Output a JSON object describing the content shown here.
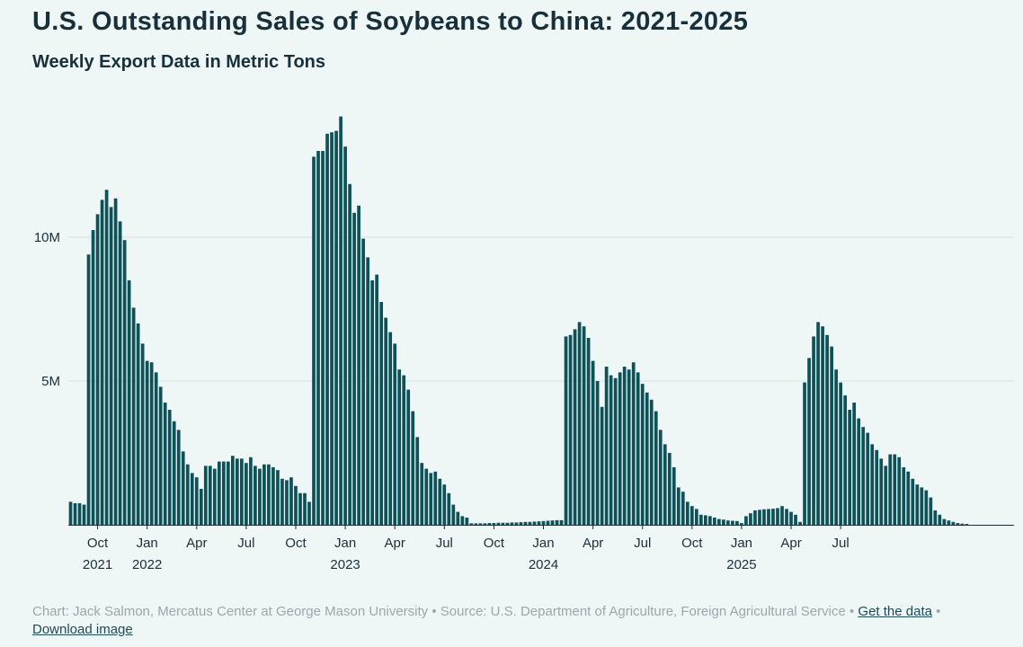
{
  "header": {
    "title": "U.S. Outstanding Sales of Soybeans to China: 2021-2025",
    "subtitle": "Weekly Export Data in Metric Tons"
  },
  "footer": {
    "credit": "Chart: Jack Salmon, Mercatus Center at George Mason University",
    "separator": " • ",
    "source": "Source: U.S. Department of Agriculture, Foreign Agricultural Service",
    "get_data_label": "Get the data",
    "download_label": "Download image"
  },
  "colors": {
    "bar": "#0d5258",
    "grid": "#d6e3e4",
    "axis": "#1b2f3a",
    "background": "#eef6f6"
  },
  "chart_data": {
    "type": "bar",
    "title": "U.S. Outstanding Sales of Soybeans to China: 2021-2025",
    "subtitle": "Weekly Export Data in Metric Tons",
    "xlabel": "",
    "ylabel": "",
    "ylim": [
      0,
      14500000
    ],
    "grid": true,
    "y_ticks": [
      {
        "value": 5000000,
        "label": "5M"
      },
      {
        "value": 10000000,
        "label": "10M"
      }
    ],
    "x_ticks": [
      {
        "week": 6,
        "month": "Oct",
        "year": "2021"
      },
      {
        "week": 17,
        "month": "Jan",
        "year": "2022"
      },
      {
        "week": 28,
        "month": "Apr",
        "year": ""
      },
      {
        "week": 39,
        "month": "Jul",
        "year": ""
      },
      {
        "week": 50,
        "month": "Oct",
        "year": ""
      },
      {
        "week": 61,
        "month": "Jan",
        "year": "2023"
      },
      {
        "week": 72,
        "month": "Apr",
        "year": ""
      },
      {
        "week": 83,
        "month": "Jul",
        "year": ""
      },
      {
        "week": 94,
        "month": "Oct",
        "year": ""
      },
      {
        "week": 105,
        "month": "Jan",
        "year": "2024"
      },
      {
        "week": 116,
        "month": "Apr",
        "year": ""
      },
      {
        "week": 127,
        "month": "Jul",
        "year": ""
      },
      {
        "week": 138,
        "month": "Oct",
        "year": ""
      },
      {
        "week": 149,
        "month": "Jan",
        "year": "2025"
      },
      {
        "week": 160,
        "month": "Apr",
        "year": ""
      },
      {
        "week": 171,
        "month": "Jul",
        "year": ""
      }
    ],
    "series": [
      {
        "name": "Outstanding sales (metric tons)",
        "values": [
          800000,
          750000,
          750000,
          700000,
          9400000,
          10250000,
          10800000,
          11300000,
          11650000,
          11050000,
          11350000,
          10550000,
          9900000,
          8500000,
          7550000,
          7000000,
          6300000,
          5700000,
          5650000,
          5300000,
          4800000,
          4250000,
          4000000,
          3600000,
          3300000,
          2550000,
          2100000,
          1800000,
          1650000,
          1250000,
          2050000,
          2050000,
          1950000,
          2200000,
          2200000,
          2200000,
          2400000,
          2300000,
          2300000,
          2150000,
          2350000,
          2050000,
          1950000,
          2100000,
          2100000,
          2000000,
          1900000,
          1600000,
          1550000,
          1650000,
          1350000,
          1100000,
          1100000,
          800000,
          12800000,
          13000000,
          13000000,
          13600000,
          13650000,
          13700000,
          14200000,
          13150000,
          11850000,
          10850000,
          11100000,
          9950000,
          9300000,
          8500000,
          8700000,
          7750000,
          7200000,
          6700000,
          6300000,
          5400000,
          5200000,
          4700000,
          3950000,
          3050000,
          2150000,
          1950000,
          1800000,
          1850000,
          1600000,
          1400000,
          1100000,
          700000,
          450000,
          300000,
          250000,
          50000,
          50000,
          50000,
          50000,
          60000,
          60000,
          70000,
          70000,
          70000,
          80000,
          80000,
          90000,
          100000,
          100000,
          110000,
          120000,
          130000,
          140000,
          150000,
          160000,
          160000,
          6550000,
          6600000,
          6800000,
          7050000,
          6900000,
          6500000,
          5700000,
          5000000,
          4100000,
          5500000,
          5200000,
          5100000,
          5300000,
          5500000,
          5400000,
          5650000,
          5300000,
          4900000,
          4600000,
          4350000,
          3950000,
          3300000,
          2800000,
          2500000,
          2000000,
          1300000,
          1150000,
          800000,
          650000,
          550000,
          350000,
          330000,
          300000,
          250000,
          200000,
          180000,
          150000,
          140000,
          130000,
          60000,
          300000,
          400000,
          500000,
          520000,
          540000,
          550000,
          560000,
          580000,
          650000,
          550000,
          450000,
          350000,
          100000,
          4950000,
          5800000,
          6550000,
          7050000,
          6900000,
          6600000,
          6200000,
          5400000,
          4950000,
          4500000,
          4000000,
          4250000,
          3700000,
          3400000,
          3200000,
          2800000,
          2600000,
          2300000,
          2050000,
          2450000,
          2450000,
          2350000,
          2000000,
          1850000,
          1600000,
          1400000,
          1300000,
          1200000,
          950000,
          500000,
          350000,
          200000,
          150000,
          100000,
          60000,
          40000,
          30000,
          0,
          0,
          0,
          0,
          0,
          0,
          0,
          0,
          0,
          0
        ]
      }
    ]
  }
}
